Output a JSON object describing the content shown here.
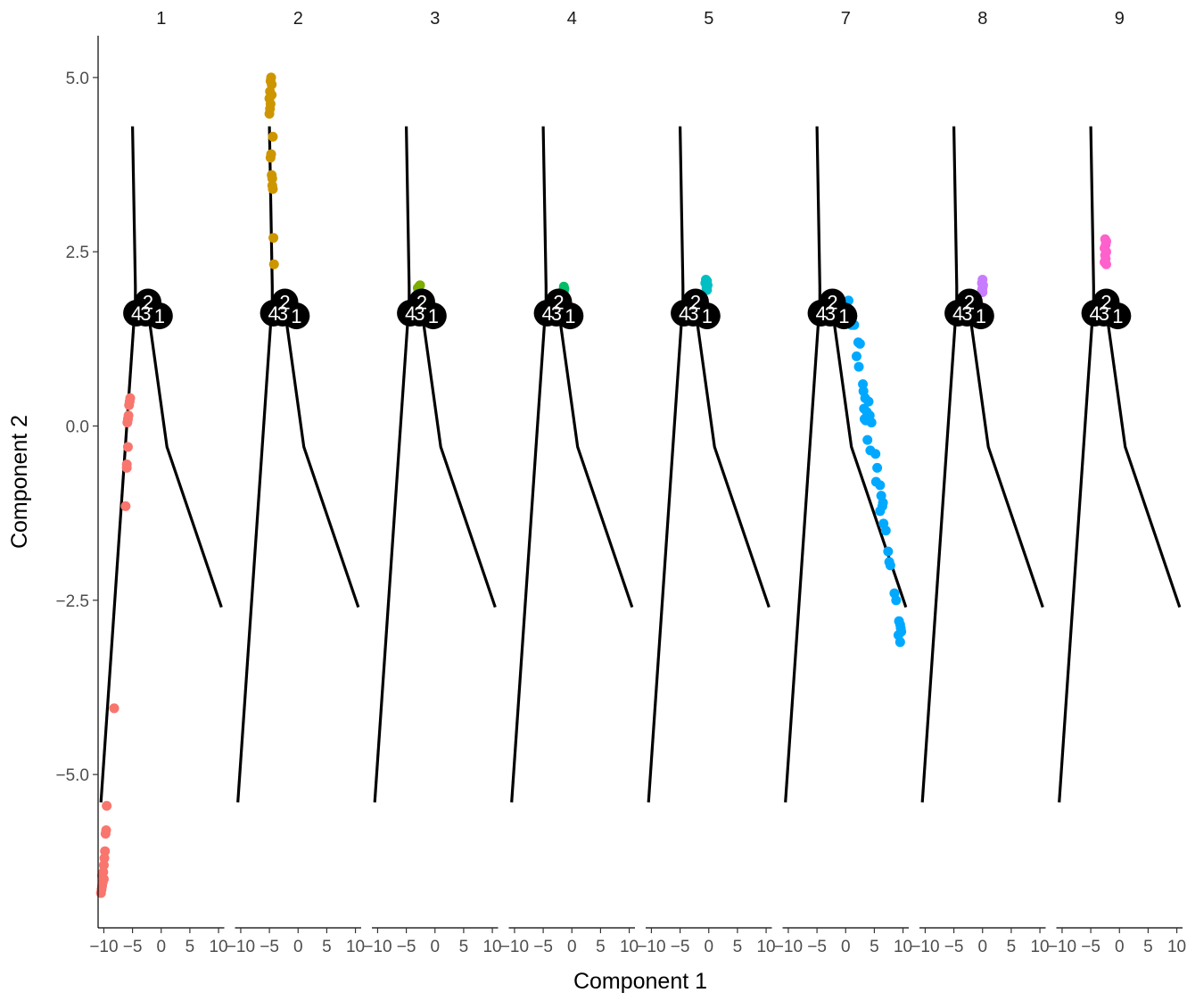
{
  "chart_data": {
    "type": "scatter",
    "facets": [
      "1",
      "2",
      "3",
      "4",
      "5",
      "7",
      "8",
      "9"
    ],
    "xlabel": "Component 1",
    "ylabel": "Component 2",
    "xlim": [
      -11,
      11
    ],
    "ylim": [
      -7.2,
      5.6
    ],
    "x_ticks": [
      -10,
      -5,
      0,
      5,
      10
    ],
    "x_tick_labels": [
      "−10",
      "−5",
      "0",
      "5",
      "10"
    ],
    "y_ticks": [
      -5.0,
      -2.5,
      0.0,
      2.5,
      5.0
    ],
    "y_tick_labels": [
      "−5.0",
      "−2.5",
      "0.0",
      "2.5",
      "5.0"
    ],
    "grid": false,
    "trajectory": {
      "branches": [
        [
          [
            -5.0,
            4.3
          ],
          [
            -4.5,
            2.0
          ],
          [
            -4.5,
            1.8
          ]
        ],
        [
          [
            -10.5,
            -5.4
          ],
          [
            -4.5,
            1.8
          ]
        ],
        [
          [
            -4.5,
            1.8
          ],
          [
            -2.2,
            1.6
          ],
          [
            1.0,
            -0.3
          ],
          [
            10.5,
            -2.6
          ]
        ]
      ],
      "nodes": [
        {
          "label": "2",
          "x": -2.3,
          "y": 1.78
        },
        {
          "label": "4",
          "x": -4.3,
          "y": 1.62
        },
        {
          "label": "3",
          "x": -2.7,
          "y": 1.62
        },
        {
          "label": "1",
          "x": -0.3,
          "y": 1.58
        }
      ]
    },
    "series": [
      {
        "name": "1",
        "color": "#F8766D",
        "points": [
          [
            -5.4,
            0.4
          ],
          [
            -5.5,
            0.35
          ],
          [
            -5.6,
            0.3
          ],
          [
            -5.7,
            0.15
          ],
          [
            -5.8,
            0.1
          ],
          [
            -5.9,
            0.05
          ],
          [
            -5.8,
            -0.3
          ],
          [
            -6.0,
            -0.55
          ],
          [
            -6.0,
            -0.6
          ],
          [
            -6.2,
            -1.15
          ],
          [
            -8.2,
            -4.05
          ],
          [
            -9.5,
            -5.45
          ],
          [
            -9.6,
            -5.8
          ],
          [
            -9.7,
            -5.85
          ],
          [
            -9.8,
            -6.1
          ],
          [
            -9.9,
            -6.2
          ],
          [
            -10.0,
            -6.3
          ],
          [
            -10.1,
            -6.4
          ],
          [
            -10.0,
            -6.5
          ],
          [
            -10.2,
            -6.55
          ],
          [
            -10.3,
            -6.6
          ],
          [
            -10.4,
            -6.65
          ],
          [
            -10.5,
            -6.7
          ],
          [
            -10.3,
            -6.45
          ]
        ]
      },
      {
        "name": "2",
        "color": "#CD9600",
        "points": [
          [
            -4.7,
            5.0
          ],
          [
            -4.8,
            4.95
          ],
          [
            -4.6,
            4.9
          ],
          [
            -4.9,
            4.8
          ],
          [
            -4.6,
            4.75
          ],
          [
            -5.0,
            4.7
          ],
          [
            -4.8,
            4.62
          ],
          [
            -4.9,
            4.55
          ],
          [
            -5.0,
            4.48
          ],
          [
            -4.4,
            4.15
          ],
          [
            -4.7,
            3.9
          ],
          [
            -4.8,
            3.85
          ],
          [
            -4.6,
            3.6
          ],
          [
            -4.5,
            3.55
          ],
          [
            -4.5,
            3.45
          ],
          [
            -4.4,
            3.4
          ],
          [
            -4.3,
            2.7
          ],
          [
            -4.2,
            2.32
          ]
        ]
      },
      {
        "name": "3",
        "color": "#7CAE00",
        "points": [
          [
            -2.8,
            2.0
          ],
          [
            -2.6,
            2.02
          ],
          [
            -3.0,
            1.98
          ],
          [
            -2.9,
            1.95
          ]
        ]
      },
      {
        "name": "4",
        "color": "#00BE67",
        "points": [
          [
            -1.4,
            2.0
          ],
          [
            -1.3,
            1.97
          ],
          [
            -1.5,
            1.95
          ],
          [
            -1.4,
            1.93
          ]
        ]
      },
      {
        "name": "5",
        "color": "#00BFC4",
        "points": [
          [
            -0.5,
            2.1
          ],
          [
            -0.3,
            2.08
          ],
          [
            -0.6,
            2.05
          ],
          [
            -0.2,
            2.02
          ],
          [
            -0.4,
            1.98
          ],
          [
            -0.3,
            1.95
          ]
        ]
      },
      {
        "name": "7",
        "color": "#00A9FF",
        "points": [
          [
            0.5,
            1.8
          ],
          [
            0.8,
            1.6
          ],
          [
            1.0,
            1.45
          ],
          [
            1.5,
            1.45
          ],
          [
            2.2,
            1.2
          ],
          [
            2.5,
            1.18
          ],
          [
            1.9,
            1.0
          ],
          [
            2.3,
            0.85
          ],
          [
            3.0,
            0.6
          ],
          [
            3.1,
            0.5
          ],
          [
            3.4,
            0.4
          ],
          [
            4.0,
            0.35
          ],
          [
            3.2,
            0.25
          ],
          [
            3.7,
            0.2
          ],
          [
            4.2,
            0.15
          ],
          [
            3.3,
            0.1
          ],
          [
            3.5,
            0.08
          ],
          [
            4.5,
            0.05
          ],
          [
            3.8,
            -0.2
          ],
          [
            4.3,
            -0.35
          ],
          [
            5.2,
            -0.4
          ],
          [
            5.5,
            -0.6
          ],
          [
            5.3,
            -0.8
          ],
          [
            6.0,
            -0.85
          ],
          [
            6.2,
            -1.0
          ],
          [
            6.5,
            -1.1
          ],
          [
            6.4,
            -1.15
          ],
          [
            6.0,
            -1.22
          ],
          [
            6.6,
            -1.4
          ],
          [
            7.0,
            -1.5
          ],
          [
            7.4,
            -1.8
          ],
          [
            7.6,
            -1.95
          ],
          [
            7.8,
            -2.0
          ],
          [
            8.5,
            -2.4
          ],
          [
            8.8,
            -2.5
          ],
          [
            9.3,
            -2.8
          ],
          [
            9.5,
            -2.85
          ],
          [
            9.6,
            -2.9
          ],
          [
            9.2,
            -3.0
          ],
          [
            9.5,
            -3.1
          ],
          [
            9.7,
            -2.95
          ]
        ]
      },
      {
        "name": "8",
        "color": "#C77CFF",
        "points": [
          [
            0.0,
            2.1
          ],
          [
            -0.1,
            2.05
          ],
          [
            0.1,
            2.02
          ],
          [
            0.0,
            1.98
          ],
          [
            -0.1,
            1.95
          ],
          [
            0.0,
            1.92
          ]
        ]
      },
      {
        "name": "9",
        "color": "#FF61CC",
        "points": [
          [
            -2.5,
            2.68
          ],
          [
            -2.3,
            2.65
          ],
          [
            -2.4,
            2.6
          ],
          [
            -2.6,
            2.55
          ],
          [
            -2.3,
            2.5
          ],
          [
            -2.5,
            2.45
          ],
          [
            -2.4,
            2.4
          ],
          [
            -2.6,
            2.35
          ],
          [
            -2.3,
            2.32
          ]
        ]
      }
    ]
  }
}
